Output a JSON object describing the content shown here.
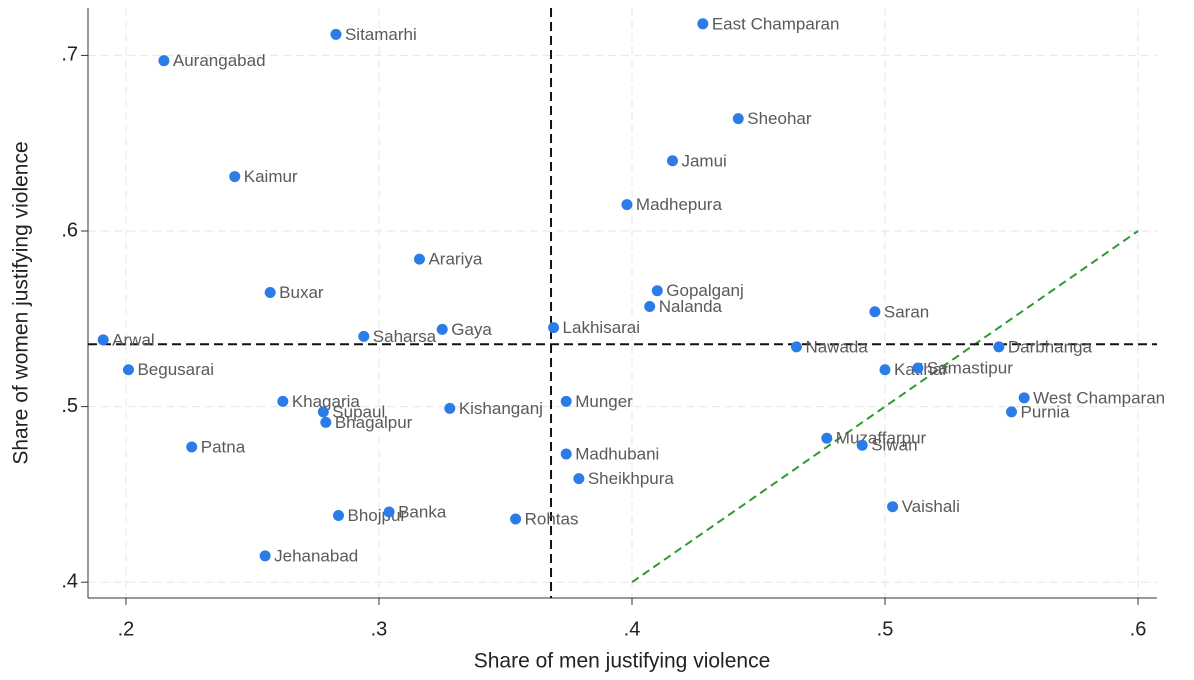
{
  "chart_data": {
    "type": "scatter",
    "xlabel": "Share of men justifying violence",
    "ylabel": "Share of women justifying violence",
    "xlim": [
      0.185,
      0.6075
    ],
    "ylim": [
      0.391,
      0.727
    ],
    "xticks": [
      {
        "value": 0.2,
        "label": ".2"
      },
      {
        "value": 0.3,
        "label": ".3"
      },
      {
        "value": 0.4,
        "label": ".4"
      },
      {
        "value": 0.5,
        "label": ".5"
      },
      {
        "value": 0.6,
        "label": ".6"
      }
    ],
    "yticks": [
      {
        "value": 0.4,
        "label": ".4"
      },
      {
        "value": 0.5,
        "label": ".5"
      },
      {
        "value": 0.6,
        "label": ".6"
      },
      {
        "value": 0.7,
        "label": ".7"
      }
    ],
    "grid": true,
    "color": "#2c7ce8",
    "vline": 0.368,
    "hline": 0.5355,
    "diagonal": {
      "x": [
        0.4,
        0.6
      ],
      "y": [
        0.4,
        0.6
      ],
      "color": "#2e9a2e"
    },
    "labels": [
      "Sitamarhi",
      "East Champaran",
      "Aurangabad",
      "Sheohar",
      "Jamui",
      "Kaimur",
      "Madhepura",
      "Arariya",
      "Gopalganj",
      "Buxar",
      "Nalanda",
      "Saran",
      "Lakhisarai",
      "Gaya",
      "Saharsa",
      "Arwal",
      "Nawada",
      "Darbhanga",
      "Begusarai",
      "Katihar",
      "Samastipur",
      "West Champaran",
      "Khagaria",
      "Munger",
      "Supaul",
      "Kishanganj",
      "Purnia",
      "Bhagalpur",
      "Muzaffarpur",
      "Siwan",
      "Patna",
      "Madhubani",
      "Sheikhpura",
      "Vaishali",
      "Bhojpur",
      "Banka",
      "Rohtas",
      "Jehanabad"
    ],
    "x": [
      0.283,
      0.428,
      0.215,
      0.442,
      0.416,
      0.243,
      0.398,
      0.316,
      0.41,
      0.257,
      0.407,
      0.496,
      0.369,
      0.325,
      0.294,
      0.191,
      0.465,
      0.545,
      0.201,
      0.5,
      0.513,
      0.555,
      0.262,
      0.374,
      0.278,
      0.328,
      0.55,
      0.279,
      0.477,
      0.491,
      0.226,
      0.374,
      0.379,
      0.503,
      0.284,
      0.304,
      0.354,
      0.255
    ],
    "values": [
      0.712,
      0.718,
      0.697,
      0.664,
      0.64,
      0.631,
      0.615,
      0.584,
      0.566,
      0.565,
      0.557,
      0.554,
      0.545,
      0.544,
      0.54,
      0.538,
      0.534,
      0.534,
      0.521,
      0.521,
      0.522,
      0.505,
      0.503,
      0.503,
      0.497,
      0.499,
      0.497,
      0.491,
      0.482,
      0.478,
      0.477,
      0.473,
      0.459,
      0.443,
      0.438,
      0.44,
      0.436,
      0.415
    ]
  }
}
